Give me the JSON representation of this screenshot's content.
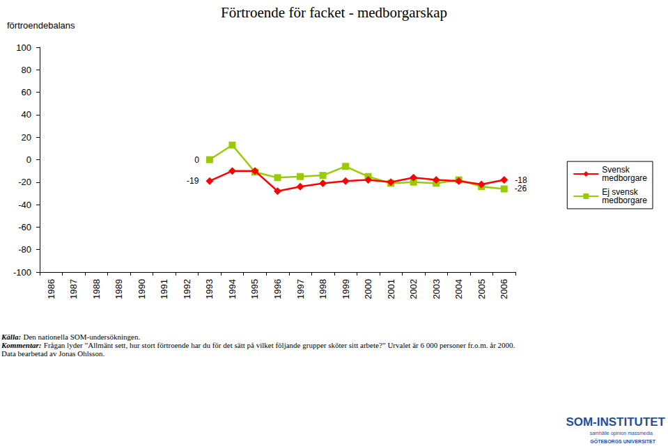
{
  "chart_data": {
    "type": "line",
    "title": "Förtroende för facket - medborgarskap",
    "y_label": "förtroendebalans",
    "categories": [
      "1986",
      "1987",
      "1988",
      "1989",
      "1990",
      "1991",
      "1992",
      "1993",
      "1994",
      "1995",
      "1996",
      "1997",
      "1998",
      "1999",
      "2000",
      "2001",
      "2002",
      "2003",
      "2004",
      "2005",
      "2006"
    ],
    "series": [
      {
        "name": "Svensk medborgare",
        "color": "#ff0000",
        "marker": "diamond",
        "line_style": "solid",
        "values": [
          null,
          null,
          null,
          null,
          null,
          null,
          null,
          -19,
          -10,
          -10,
          -28,
          -24,
          -21,
          -19,
          -18,
          -20,
          -16,
          -18,
          -19,
          -22,
          -18
        ]
      },
      {
        "name": "Ej svensk medborgare",
        "color": "#99cc00",
        "marker": "square",
        "line_style": "solid",
        "values": [
          null,
          null,
          null,
          null,
          null,
          null,
          null,
          0,
          13,
          -11,
          -16,
          -15,
          -14,
          -6,
          -15,
          -21,
          -20,
          -21,
          -18,
          -24,
          -26
        ]
      }
    ],
    "annotations": [
      {
        "series": "Svensk medborgare",
        "category": "1993",
        "text": "-19"
      },
      {
        "series": "Ej svensk medborgare",
        "category": "1993",
        "text": "0"
      },
      {
        "series": "Svensk medborgare",
        "category": "2006",
        "text": "-18"
      },
      {
        "series": "Ej svensk medborgare",
        "category": "2006",
        "text": "-26"
      }
    ],
    "ylim": [
      -100,
      100
    ],
    "yticks": [
      -100,
      -80,
      -60,
      -40,
      -20,
      0,
      20,
      40,
      60,
      80,
      100
    ],
    "grid": false,
    "legend": "right",
    "footnotes": [
      {
        "label": "Källa:",
        "text": "Den nationella SOM-undersökningen."
      },
      {
        "label": "Kommentar:",
        "text": "Frågan lyder ”Allmänt sett, hur stort förtroende har du för det sätt på vilket följande grupper sköter sitt arbete?” Urvalet är 6 000 personer fr.o.m. år 2000."
      },
      {
        "label": "",
        "text": "Data bearbetad av Jonas Ohlsson."
      }
    ],
    "logo": [
      "SOM-INSTITUTET",
      "samhälle opinion massmedia",
      "GÖTEBORGS UNIVERSITET"
    ]
  }
}
